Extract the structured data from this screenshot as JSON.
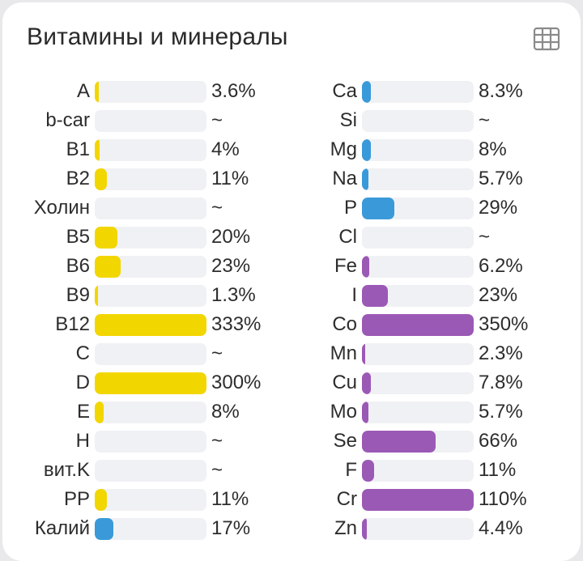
{
  "header": {
    "title": "Витамины и минералы",
    "table_view_icon": "table-icon"
  },
  "colors": {
    "vitamin": "#f2d600",
    "potassium": "#3a9ad9",
    "macro": "#3a9ad9",
    "micro": "#9b59b6",
    "track": "#f0f1f4"
  },
  "chart_data": {
    "type": "bar",
    "title": "Витамины и минералы",
    "orientation": "horizontal",
    "max_percent_full_bar": 100,
    "series": [
      {
        "name": "left",
        "rows": [
          {
            "label": "A",
            "value": 3.6,
            "display": "3.6%",
            "color": "vitamin"
          },
          {
            "label": "b-car",
            "value": null,
            "display": "~",
            "color": "vitamin"
          },
          {
            "label": "B1",
            "value": 4,
            "display": "4%",
            "color": "vitamin"
          },
          {
            "label": "B2",
            "value": 11,
            "display": "11%",
            "color": "vitamin"
          },
          {
            "label": "Холин",
            "value": null,
            "display": "~",
            "color": "vitamin"
          },
          {
            "label": "B5",
            "value": 20,
            "display": "20%",
            "color": "vitamin"
          },
          {
            "label": "B6",
            "value": 23,
            "display": "23%",
            "color": "vitamin"
          },
          {
            "label": "B9",
            "value": 1.3,
            "display": "1.3%",
            "color": "vitamin"
          },
          {
            "label": "B12",
            "value": 333,
            "display": "333%",
            "color": "vitamin"
          },
          {
            "label": "C",
            "value": null,
            "display": "~",
            "color": "vitamin"
          },
          {
            "label": "D",
            "value": 300,
            "display": "300%",
            "color": "vitamin"
          },
          {
            "label": "E",
            "value": 8,
            "display": "8%",
            "color": "vitamin"
          },
          {
            "label": "H",
            "value": null,
            "display": "~",
            "color": "vitamin"
          },
          {
            "label": "вит.K",
            "value": null,
            "display": "~",
            "color": "vitamin"
          },
          {
            "label": "PP",
            "value": 11,
            "display": "11%",
            "color": "vitamin"
          },
          {
            "label": "Калий",
            "value": 17,
            "display": "17%",
            "color": "potassium"
          }
        ]
      },
      {
        "name": "right",
        "rows": [
          {
            "label": "Ca",
            "value": 8.3,
            "display": "8.3%",
            "color": "macro"
          },
          {
            "label": "Si",
            "value": null,
            "display": "~",
            "color": "macro"
          },
          {
            "label": "Mg",
            "value": 8,
            "display": "8%",
            "color": "macro"
          },
          {
            "label": "Na",
            "value": 5.7,
            "display": "5.7%",
            "color": "macro"
          },
          {
            "label": "P",
            "value": 29,
            "display": "29%",
            "color": "macro"
          },
          {
            "label": "Cl",
            "value": null,
            "display": "~",
            "color": "macro"
          },
          {
            "label": "Fe",
            "value": 6.2,
            "display": "6.2%",
            "color": "micro"
          },
          {
            "label": "I",
            "value": 23,
            "display": "23%",
            "color": "micro"
          },
          {
            "label": "Co",
            "value": 350,
            "display": "350%",
            "color": "micro"
          },
          {
            "label": "Mn",
            "value": 2.3,
            "display": "2.3%",
            "color": "micro"
          },
          {
            "label": "Cu",
            "value": 7.8,
            "display": "7.8%",
            "color": "micro"
          },
          {
            "label": "Mo",
            "value": 5.7,
            "display": "5.7%",
            "color": "micro"
          },
          {
            "label": "Se",
            "value": 66,
            "display": "66%",
            "color": "micro"
          },
          {
            "label": "F",
            "value": 11,
            "display": "11%",
            "color": "micro"
          },
          {
            "label": "Cr",
            "value": 110,
            "display": "110%",
            "color": "micro"
          },
          {
            "label": "Zn",
            "value": 4.4,
            "display": "4.4%",
            "color": "micro"
          }
        ]
      }
    ]
  }
}
